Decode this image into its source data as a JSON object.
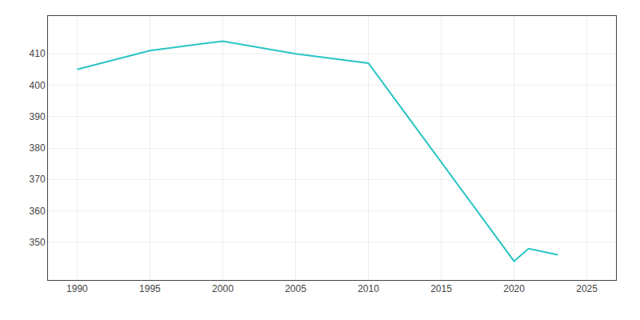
{
  "chart_data": {
    "type": "line",
    "x": [
      1990,
      1995,
      2000,
      2005,
      2010,
      2020,
      2021,
      2023
    ],
    "values": [
      405,
      411,
      414,
      410,
      407,
      344,
      348,
      346
    ],
    "color": "#2BC4C4",
    "xlim": [
      1988,
      2027
    ],
    "ylim": [
      338,
      422
    ],
    "xticks": [
      1990,
      1995,
      2000,
      2005,
      2010,
      2015,
      2020,
      2025
    ],
    "yticks": [
      350,
      360,
      370,
      380,
      390,
      400,
      410
    ],
    "grid": true
  }
}
